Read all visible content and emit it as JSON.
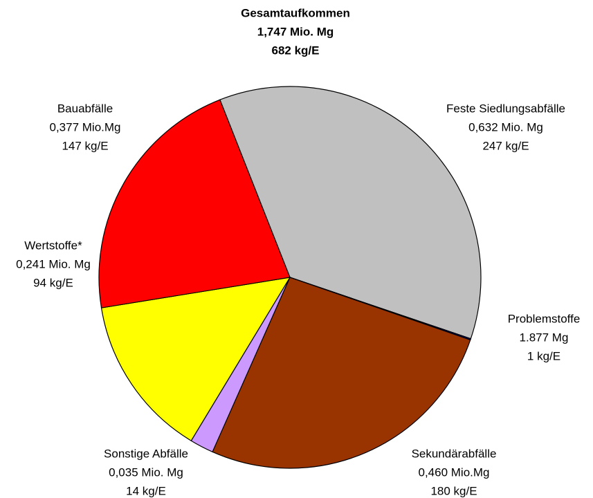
{
  "chart_data": {
    "type": "pie",
    "title": "Gesamtaufkommen",
    "subtitle": [
      "1,747 Mio. Mg",
      "682 kg/E"
    ],
    "categories": [
      "Feste Siedlungsabfälle",
      "Problemstoffe",
      "Sekundärabfälle",
      "Sonstige Abfälle",
      "Wertstoffe*",
      "Bauabfälle"
    ],
    "values": [
      0.632,
      0.001877,
      0.46,
      0.035,
      0.241,
      0.377
    ],
    "value_labels": [
      "0,632 Mio. Mg",
      "1.877 Mg",
      "0,460 Mio.Mg",
      "0,035 Mio. Mg",
      "0,241 Mio. Mg",
      "0,377 Mio.Mg"
    ],
    "per_capita_labels": [
      "247 kg/E",
      "1 kg/E",
      "180 kg/E",
      "14 kg/E",
      "94 kg/E",
      "147 kg/E"
    ],
    "colors": [
      "#c0c0c0",
      "#000080",
      "#993300",
      "#cc99ff",
      "#ffff00",
      "#ff0000"
    ]
  }
}
